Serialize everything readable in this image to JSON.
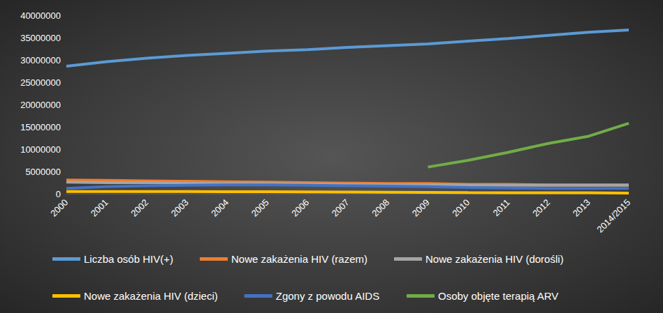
{
  "chart_data": {
    "type": "line",
    "categories": [
      "2000",
      "2001",
      "2002",
      "2003",
      "2004",
      "2005",
      "2006",
      "2007",
      "2008",
      "2009",
      "2010",
      "2011",
      "2012",
      "2013",
      "2014/2015"
    ],
    "series": [
      {
        "name": "Liczba osób HIV(+)",
        "color": "#5b9bd5",
        "values": [
          28600000,
          29600000,
          30400000,
          31000000,
          31500000,
          32000000,
          32300000,
          32800000,
          33200000,
          33600000,
          34200000,
          34800000,
          35500000,
          36200000,
          36700000
        ]
      },
      {
        "name": "Nowe zakażenia HIV (razem)",
        "color": "#ed7d31",
        "values": [
          3100000,
          3000000,
          2900000,
          2800000,
          2700000,
          2600000,
          2500000,
          2400000,
          2300000,
          2300000,
          2100000,
          2100000,
          2000000,
          2000000,
          2000000
        ]
      },
      {
        "name": "Nowe zakażenia HIV (dorośli)",
        "color": "#a5a5a5",
        "values": [
          2600000,
          2500000,
          2500000,
          2400000,
          2300000,
          2300000,
          2200000,
          2100000,
          2000000,
          2000000,
          1900000,
          1900000,
          1900000,
          1900000,
          1900000
        ]
      },
      {
        "name": "Nowe zakażenia HIV (dzieci)",
        "color": "#ffc000",
        "values": [
          520000,
          520000,
          520000,
          500000,
          480000,
          450000,
          420000,
          380000,
          350000,
          320000,
          280000,
          250000,
          240000,
          220000,
          150000
        ]
      },
      {
        "name": "Zgony z powodu AIDS",
        "color": "#4472c4",
        "values": [
          1200000,
          1600000,
          1800000,
          1900000,
          2000000,
          2000000,
          1900000,
          1800000,
          1700000,
          1600000,
          1400000,
          1300000,
          1200000,
          1200000,
          1200000
        ]
      },
      {
        "name": "Osoby objęte terapią ARV",
        "color": "#70ad47",
        "values": [
          null,
          null,
          null,
          null,
          null,
          null,
          null,
          null,
          null,
          6000000,
          7500000,
          9300000,
          11300000,
          12900000,
          15800000
        ]
      }
    ],
    "ylim": [
      0,
      40000000
    ],
    "yticks": [
      0,
      5000000,
      10000000,
      15000000,
      20000000,
      25000000,
      30000000,
      35000000,
      40000000
    ],
    "grid": false,
    "legend": "bottom"
  }
}
